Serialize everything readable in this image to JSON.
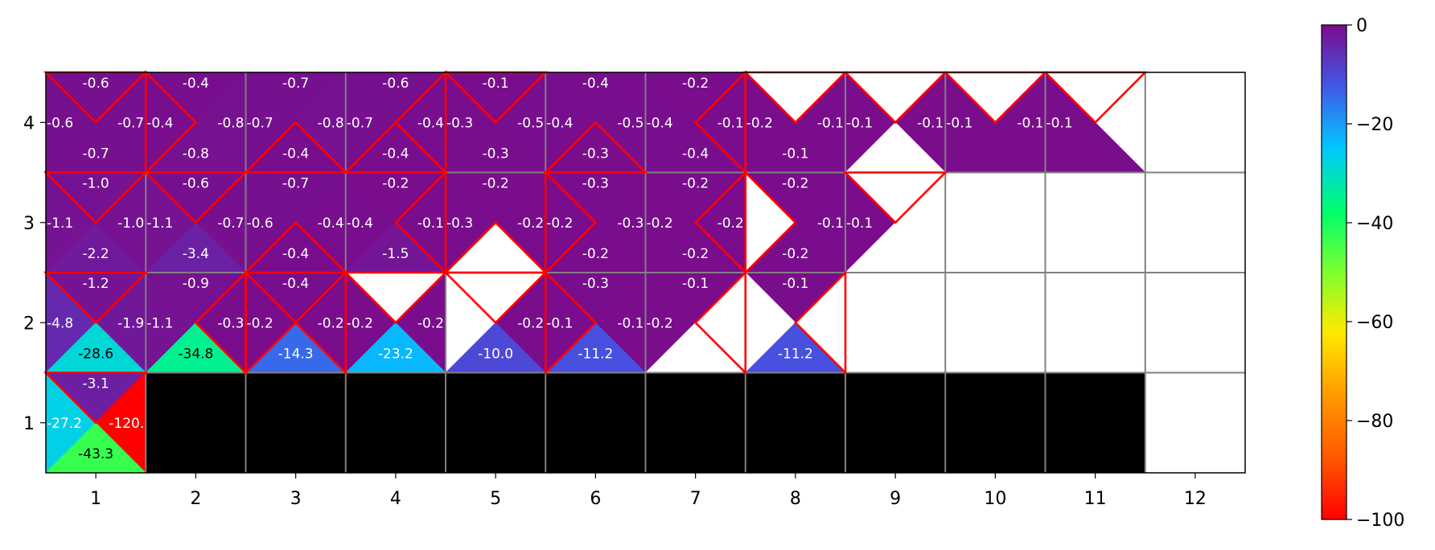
{
  "chart_data": {
    "type": "heatmap",
    "title": "",
    "xlabel": "",
    "ylabel": "",
    "x_ticks": [
      "1",
      "2",
      "3",
      "4",
      "5",
      "6",
      "7",
      "8",
      "9",
      "10",
      "11",
      "12"
    ],
    "y_ticks": [
      "1",
      "2",
      "3",
      "4"
    ],
    "xlim": [
      0.5,
      12.5
    ],
    "ylim": [
      0.5,
      4.5
    ],
    "colorbar": {
      "colormap": "gist_rainbow (red → violet)",
      "min": -100,
      "max": 0,
      "ticks": [
        "0",
        "−20",
        "−40",
        "−60",
        "−80",
        "−100"
      ],
      "tick_values": [
        0,
        -20,
        -40,
        -60,
        -80,
        -100
      ]
    },
    "wall_color": "#000000",
    "optimal_action_outline_color": "#ff0000",
    "cells": [
      {
        "x": 1,
        "y": 4,
        "up": "-0.6",
        "left": "-0.6",
        "right": "-0.7",
        "down": "-0.7",
        "best": [
          "up"
        ]
      },
      {
        "x": 2,
        "y": 4,
        "up": "-0.4",
        "left": "-0.4",
        "right": "-0.8",
        "down": "-0.8",
        "best": [
          "left"
        ]
      },
      {
        "x": 3,
        "y": 4,
        "up": "-0.7",
        "left": "-0.7",
        "right": "-0.8",
        "down": "-0.4",
        "best": [
          "down"
        ]
      },
      {
        "x": 4,
        "y": 4,
        "up": "-0.6",
        "left": "-0.7",
        "right": "-0.4",
        "down": "-0.4",
        "best": [
          "right",
          "down"
        ]
      },
      {
        "x": 5,
        "y": 4,
        "up": "-0.1",
        "left": "-0.3",
        "right": "-0.5",
        "down": "-0.3",
        "best": [
          "up"
        ]
      },
      {
        "x": 6,
        "y": 4,
        "up": "-0.4",
        "left": "-0.4",
        "right": "-0.5",
        "down": "-0.3",
        "best": [
          "down"
        ]
      },
      {
        "x": 7,
        "y": 4,
        "up": "-0.2",
        "left": "-0.4",
        "right": "-0.1",
        "down": "-0.4",
        "best": [
          "right"
        ]
      },
      {
        "x": 8,
        "y": 4,
        "up": "0",
        "left": "-0.2",
        "right": "-0.1",
        "down": "-0.1",
        "best": [
          "up"
        ],
        "show": [
          "left",
          "right",
          "down"
        ]
      },
      {
        "x": 9,
        "y": 4,
        "up": "0",
        "left": "-0.1",
        "right": "-0.1",
        "down": "0",
        "best": [
          "up"
        ],
        "show": [
          "left",
          "right"
        ]
      },
      {
        "x": 10,
        "y": 4,
        "up": "0",
        "left": "-0.1",
        "right": "-0.1",
        "down": "-0.1",
        "best": [
          "up"
        ],
        "show": [
          "left",
          "right"
        ]
      },
      {
        "x": 11,
        "y": 4,
        "up": "0",
        "left": "-0.1",
        "right": "0",
        "down": "-0.1",
        "best": [
          "up"
        ],
        "show": [
          "left"
        ]
      },
      {
        "x": 12,
        "y": 4,
        "up": "0",
        "left": "0",
        "right": "0",
        "down": "0",
        "best": [],
        "show": []
      },
      {
        "x": 1,
        "y": 3,
        "up": "-1.0",
        "left": "-1.1",
        "right": "-1.0",
        "down": "-2.2",
        "best": [
          "up"
        ]
      },
      {
        "x": 2,
        "y": 3,
        "up": "-0.6",
        "left": "-1.1",
        "right": "-0.7",
        "down": "-3.4",
        "best": [
          "up"
        ]
      },
      {
        "x": 3,
        "y": 3,
        "up": "-0.7",
        "left": "-0.6",
        "right": "-0.4",
        "down": "-0.4",
        "best": [
          "down"
        ]
      },
      {
        "x": 4,
        "y": 3,
        "up": "-0.2",
        "left": "-0.4",
        "right": "-0.1",
        "down": "-1.5",
        "best": [
          "right"
        ]
      },
      {
        "x": 5,
        "y": 3,
        "up": "-0.2",
        "left": "-0.3",
        "right": "-0.2",
        "down": "0",
        "best": [
          "down"
        ],
        "show": [
          "up",
          "left",
          "right"
        ]
      },
      {
        "x": 6,
        "y": 3,
        "up": "-0.3",
        "left": "-0.2",
        "right": "-0.3",
        "down": "-0.2",
        "best": [
          "left"
        ]
      },
      {
        "x": 7,
        "y": 3,
        "up": "-0.2",
        "left": "-0.2",
        "right": "-0.2",
        "down": "-0.2",
        "best": [
          "right"
        ]
      },
      {
        "x": 8,
        "y": 3,
        "up": "-0.2",
        "left": "0",
        "right": "-0.1",
        "down": "-0.2",
        "best": [
          "left"
        ],
        "show": [
          "up",
          "right",
          "down"
        ]
      },
      {
        "x": 9,
        "y": 3,
        "up": "0",
        "left": "-0.1",
        "right": "0",
        "down": "0",
        "best": [
          "up"
        ],
        "show": [
          "left"
        ]
      },
      {
        "x": 10,
        "y": 3,
        "up": "0",
        "left": "0",
        "right": "0",
        "down": "0",
        "best": [],
        "show": []
      },
      {
        "x": 11,
        "y": 3,
        "up": "0",
        "left": "0",
        "right": "0",
        "down": "0",
        "best": [],
        "show": []
      },
      {
        "x": 12,
        "y": 3,
        "up": "0",
        "left": "0",
        "right": "0",
        "down": "0",
        "best": [],
        "show": []
      },
      {
        "x": 1,
        "y": 2,
        "up": "-1.2",
        "left": "-4.8",
        "right": "-1.9",
        "down": "-28.6",
        "best": [
          "up"
        ]
      },
      {
        "x": 2,
        "y": 2,
        "up": "-0.9",
        "left": "-1.1",
        "right": "-0.3",
        "down": "-34.8",
        "best": [
          "right"
        ]
      },
      {
        "x": 3,
        "y": 2,
        "up": "-0.4",
        "left": "-0.2",
        "right": "-0.2",
        "down": "-14.3",
        "best": [
          "left",
          "right"
        ]
      },
      {
        "x": 4,
        "y": 2,
        "up": "0",
        "left": "-0.2",
        "right": "-0.2",
        "down": "-23.2",
        "best": [
          "up"
        ],
        "show": [
          "left",
          "right",
          "down"
        ]
      },
      {
        "x": 5,
        "y": 2,
        "up": "0",
        "left": "0",
        "right": "-0.2",
        "down": "-10.0",
        "best": [
          "up"
        ],
        "show": [
          "right",
          "down"
        ]
      },
      {
        "x": 6,
        "y": 2,
        "up": "-0.3",
        "left": "-0.1",
        "right": "-0.1",
        "down": "-11.2",
        "best": [
          "left"
        ]
      },
      {
        "x": 7,
        "y": 2,
        "up": "-0.1",
        "left": "-0.2",
        "right": "0",
        "down": "0",
        "best": [
          "right"
        ],
        "show": [
          "up",
          "left"
        ]
      },
      {
        "x": 8,
        "y": 2,
        "up": "-0.1",
        "left": "0",
        "right": "0",
        "down": "-11.2",
        "best": [
          "right"
        ],
        "show": [
          "up",
          "down"
        ]
      },
      {
        "x": 9,
        "y": 2,
        "up": "0",
        "left": "0",
        "right": "0",
        "down": "0",
        "best": [],
        "show": []
      },
      {
        "x": 10,
        "y": 2,
        "up": "0",
        "left": "0",
        "right": "0",
        "down": "0",
        "best": [],
        "show": []
      },
      {
        "x": 11,
        "y": 2,
        "up": "0",
        "left": "0",
        "right": "0",
        "down": "0",
        "best": [],
        "show": []
      },
      {
        "x": 12,
        "y": 2,
        "up": "0",
        "left": "0",
        "right": "0",
        "down": "0",
        "best": [],
        "show": []
      },
      {
        "x": 1,
        "y": 1,
        "up": "-3.1",
        "left": "-27.2",
        "right": "-120.",
        "down": "-43.3",
        "best": [
          "up"
        ]
      }
    ],
    "wall_cells": [
      [
        2,
        1
      ],
      [
        3,
        1
      ],
      [
        4,
        1
      ],
      [
        5,
        1
      ],
      [
        6,
        1
      ],
      [
        7,
        1
      ],
      [
        8,
        1
      ],
      [
        9,
        1
      ],
      [
        10,
        1
      ],
      [
        11,
        1
      ]
    ],
    "empty_cells": [
      [
        12,
        1
      ]
    ]
  }
}
